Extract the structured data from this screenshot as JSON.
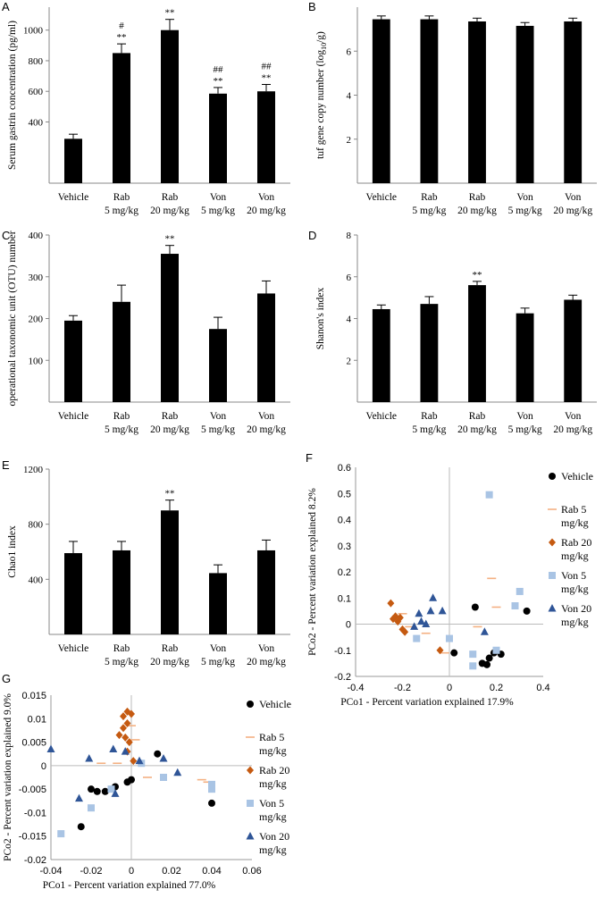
{
  "group_labels": [
    [
      "Vehicle",
      ""
    ],
    [
      "Rab",
      "5 mg/kg"
    ],
    [
      "Rab",
      "20 mg/kg"
    ],
    [
      "Von",
      "5 mg/kg"
    ],
    [
      "Von",
      "20 mg/kg"
    ]
  ],
  "chart_data": [
    {
      "panel": "A",
      "type": "bar",
      "ylabel": "Serum gastrin concentration (pg/ml)",
      "ylim": [
        0,
        1150
      ],
      "yticks": [
        400,
        600,
        800,
        1000
      ],
      "yticklabels": [
        "400",
        "600",
        "800",
        "1000"
      ],
      "values": [
        290,
        850,
        1000,
        585,
        600
      ],
      "errors": [
        30,
        60,
        70,
        40,
        45
      ],
      "annotations": [
        [
          "",
          ""
        ],
        [
          "#",
          "**"
        ],
        [
          "",
          "**"
        ],
        [
          "##",
          "**"
        ],
        [
          "##",
          "**"
        ]
      ]
    },
    {
      "panel": "B",
      "type": "bar",
      "ylabel": "tuf gene copy number (log",
      "ylabel_sub": "10",
      "ylabel_tail": "/g)",
      "ylim": [
        0,
        8
      ],
      "yticks": [
        2,
        4,
        6
      ],
      "yticklabels": [
        "2",
        "4",
        "6"
      ],
      "values": [
        7.45,
        7.45,
        7.35,
        7.15,
        7.35
      ],
      "errors": [
        0.15,
        0.15,
        0.15,
        0.15,
        0.15
      ],
      "annotations": [
        [
          "",
          ""
        ],
        [
          "",
          ""
        ],
        [
          "",
          ""
        ],
        [
          "",
          ""
        ],
        [
          "",
          ""
        ]
      ]
    },
    {
      "panel": "C",
      "type": "bar",
      "ylabel": "operational taxonomic unit (OTU) number",
      "ylim": [
        0,
        400
      ],
      "yticks": [
        100,
        200,
        300,
        400
      ],
      "yticklabels": [
        "100",
        "200",
        "300",
        "400"
      ],
      "values": [
        195,
        240,
        355,
        175,
        260
      ],
      "errors": [
        12,
        40,
        20,
        28,
        30
      ],
      "annotations": [
        [
          "",
          ""
        ],
        [
          "",
          ""
        ],
        [
          "",
          "**"
        ],
        [
          "",
          ""
        ],
        [
          "",
          ""
        ]
      ]
    },
    {
      "panel": "D",
      "type": "bar",
      "ylabel": "Shanon's index",
      "ylim": [
        0,
        8
      ],
      "yticks": [
        2,
        4,
        6,
        8
      ],
      "yticklabels": [
        "2",
        "4",
        "6",
        "8"
      ],
      "values": [
        4.45,
        4.7,
        5.6,
        4.25,
        4.9
      ],
      "errors": [
        0.2,
        0.35,
        0.18,
        0.25,
        0.22
      ],
      "annotations": [
        [
          "",
          ""
        ],
        [
          "",
          ""
        ],
        [
          "",
          "**"
        ],
        [
          "",
          ""
        ],
        [
          "",
          ""
        ]
      ]
    },
    {
      "panel": "E",
      "type": "bar",
      "ylabel": "Chao1 index",
      "ylim": [
        0,
        1200
      ],
      "yticks": [
        400,
        800,
        1200
      ],
      "yticklabels": [
        "400",
        "800",
        "1200"
      ],
      "values": [
        590,
        610,
        900,
        445,
        610
      ],
      "errors": [
        85,
        65,
        75,
        60,
        75
      ],
      "annotations": [
        [
          "",
          ""
        ],
        [
          "",
          ""
        ],
        [
          "",
          "**"
        ],
        [
          "",
          ""
        ],
        [
          "",
          ""
        ]
      ]
    },
    {
      "panel": "F",
      "type": "scatter",
      "xlabel": "PCo1 - Percent variation explained 17.9%",
      "ylabel": "PCo2 - Percent variation explained 8.2%",
      "xlim": [
        -0.4,
        0.4
      ],
      "ylim": [
        -0.2,
        0.6
      ],
      "xticks": [
        -0.4,
        -0.2,
        0,
        0.2,
        0.4
      ],
      "xticklabels": [
        "-0.4",
        "-0.2",
        "0",
        "0.2",
        "0.4"
      ],
      "yticks": [
        -0.2,
        -0.1,
        0,
        0.1,
        0.2,
        0.3,
        0.4,
        0.5,
        0.6
      ],
      "yticklabels": [
        "-0.2",
        "-0.1",
        "0",
        "0.1",
        "0.2",
        "0.3",
        "0.4",
        "0.5",
        "0.6"
      ],
      "series": [
        {
          "name": [
            "Vehicle"
          ],
          "marker": "circle",
          "color": "#000000",
          "points": [
            [
              0.11,
              0.065
            ],
            [
              0.14,
              -0.15
            ],
            [
              0.16,
              -0.155
            ],
            [
              0.17,
              -0.13
            ],
            [
              0.19,
              -0.11
            ],
            [
              0.22,
              -0.115
            ],
            [
              0.33,
              0.05
            ],
            [
              0.02,
              -0.11
            ]
          ]
        },
        {
          "name": [
            "Rab 5",
            "mg/kg"
          ],
          "marker": "dash",
          "color": "#f4b183",
          "points": [
            [
              0.18,
              0.175
            ],
            [
              0.2,
              0.065
            ],
            [
              0.12,
              -0.01
            ],
            [
              -0.1,
              -0.035
            ],
            [
              -0.02,
              -0.11
            ],
            [
              -0.17,
              -0.01
            ],
            [
              -0.2,
              0.04
            ]
          ]
        },
        {
          "name": [
            "Rab 20",
            "mg/kg"
          ],
          "marker": "diamond",
          "color": "#c55a11",
          "points": [
            [
              -0.25,
              0.08
            ],
            [
              -0.23,
              0.03
            ],
            [
              -0.22,
              0.01
            ],
            [
              -0.21,
              0.025
            ],
            [
              -0.2,
              -0.02
            ],
            [
              -0.19,
              -0.03
            ],
            [
              -0.24,
              0.02
            ],
            [
              -0.04,
              -0.1
            ]
          ]
        },
        {
          "name": [
            "Von 5",
            "mg/kg"
          ],
          "marker": "square",
          "color": "#a9c4e4",
          "points": [
            [
              0.17,
              0.495
            ],
            [
              0.3,
              0.125
            ],
            [
              0.28,
              0.07
            ],
            [
              0.2,
              -0.1
            ],
            [
              0.1,
              -0.115
            ],
            [
              0.1,
              -0.16
            ],
            [
              0.0,
              -0.055
            ],
            [
              -0.14,
              -0.055
            ]
          ]
        },
        {
          "name": [
            "Von 20",
            "mg/kg"
          ],
          "marker": "triangle",
          "color": "#2f5597",
          "points": [
            [
              -0.12,
              0.01
            ],
            [
              -0.13,
              0.04
            ],
            [
              -0.1,
              0.0
            ],
            [
              -0.07,
              0.1
            ],
            [
              -0.08,
              0.05
            ],
            [
              -0.03,
              0.05
            ],
            [
              0.15,
              -0.03
            ],
            [
              -0.15,
              -0.01
            ]
          ]
        }
      ]
    },
    {
      "panel": "G",
      "type": "scatter",
      "xlabel": "PCo1 - Percent variation explained 77.0%",
      "ylabel": "PCo2 - Percent variation explained 9.0%",
      "xlim": [
        -0.04,
        0.06
      ],
      "ylim": [
        -0.02,
        0.015
      ],
      "xticks": [
        -0.04,
        -0.02,
        0,
        0.02,
        0.04,
        0.06
      ],
      "xticklabels": [
        "-0.04",
        "-0.02",
        "0",
        "0.02",
        "0.04",
        "0.06"
      ],
      "yticks": [
        -0.02,
        -0.015,
        -0.01,
        -0.005,
        0,
        0.005,
        0.01,
        0.015
      ],
      "yticklabels": [
        "-0.02",
        "-0.015",
        "-0.01",
        "-0.005",
        "0",
        "0.005",
        "0.01",
        "0.015"
      ],
      "series": [
        {
          "name": [
            "Vehicle"
          ],
          "marker": "circle",
          "color": "#000000",
          "points": [
            [
              -0.025,
              -0.013
            ],
            [
              -0.02,
              -0.005
            ],
            [
              -0.017,
              -0.0055
            ],
            [
              -0.013,
              -0.0055
            ],
            [
              -0.008,
              -0.0045
            ],
            [
              -0.002,
              -0.0035
            ],
            [
              0.0,
              -0.003
            ],
            [
              0.013,
              0.0025
            ],
            [
              0.04,
              -0.008
            ]
          ]
        },
        {
          "name": [
            "Rab 5",
            "mg/kg"
          ],
          "marker": "dash",
          "color": "#f4b183",
          "points": [
            [
              0.008,
              -0.0025
            ],
            [
              0.038,
              -0.0035
            ],
            [
              -0.007,
              0.0005
            ],
            [
              -0.015,
              0.0005
            ],
            [
              0.0,
              0.0085
            ],
            [
              0.002,
              0.0055
            ],
            [
              0.035,
              -0.003
            ]
          ]
        },
        {
          "name": [
            "Rab 20",
            "mg/kg"
          ],
          "marker": "diamond",
          "color": "#c55a11",
          "points": [
            [
              -0.002,
              0.0115
            ],
            [
              0.0,
              0.011
            ],
            [
              -0.004,
              0.0105
            ],
            [
              -0.002,
              0.009
            ],
            [
              -0.004,
              0.008
            ],
            [
              -0.006,
              0.0065
            ],
            [
              -0.003,
              0.006
            ],
            [
              -0.001,
              0.005
            ],
            [
              -0.002,
              0.003
            ],
            [
              0.001,
              0.001
            ]
          ]
        },
        {
          "name": [
            "Von 5",
            "mg/kg"
          ],
          "marker": "square",
          "color": "#a9c4e4",
          "points": [
            [
              -0.035,
              -0.0145
            ],
            [
              -0.02,
              -0.009
            ],
            [
              -0.01,
              -0.005
            ],
            [
              0.005,
              0.0005
            ],
            [
              0.016,
              -0.0025
            ],
            [
              0.04,
              -0.005
            ],
            [
              0.04,
              -0.004
            ]
          ]
        },
        {
          "name": [
            "Von 20",
            "mg/kg"
          ],
          "marker": "triangle",
          "color": "#2f5597",
          "points": [
            [
              -0.04,
              0.0035
            ],
            [
              -0.026,
              -0.007
            ],
            [
              -0.021,
              0.0015
            ],
            [
              -0.009,
              0.0035
            ],
            [
              -0.003,
              0.003
            ],
            [
              0.004,
              0.001
            ],
            [
              0.016,
              0.0015
            ],
            [
              0.023,
              -0.0015
            ],
            [
              -0.008,
              -0.006
            ]
          ]
        }
      ]
    }
  ]
}
